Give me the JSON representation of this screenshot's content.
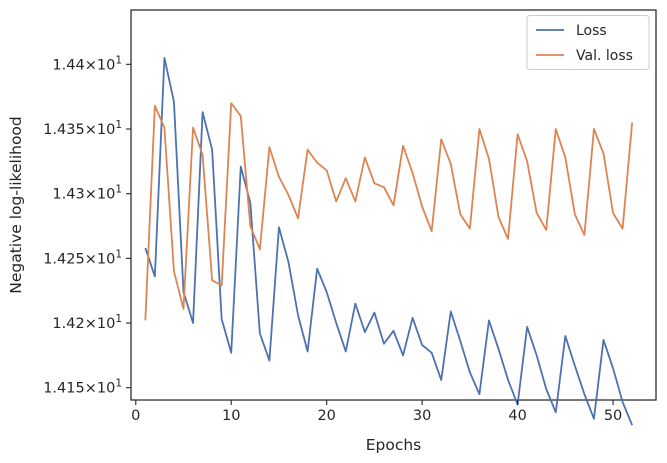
{
  "chart_data": {
    "type": "line",
    "xlabel": "Epochs",
    "ylabel": "Negative log-likelihood",
    "xlim": [
      -0.5,
      54.5
    ],
    "ylim": [
      14.1405,
      14.442
    ],
    "x_ticks": [
      0,
      10,
      20,
      30,
      40,
      50
    ],
    "x_tick_labels": [
      "0",
      "10",
      "20",
      "30",
      "40",
      "50"
    ],
    "y_ticks": [
      {
        "value": 14.15,
        "base": "1.415",
        "exp": "1"
      },
      {
        "value": 14.2,
        "base": "1.42",
        "exp": "1"
      },
      {
        "value": 14.25,
        "base": "1.425",
        "exp": "1"
      },
      {
        "value": 14.3,
        "base": "1.43",
        "exp": "1"
      },
      {
        "value": 14.35,
        "base": "1.435",
        "exp": "1"
      },
      {
        "value": 14.4,
        "base": "1.44",
        "exp": "1"
      }
    ],
    "grid": false,
    "legend_position": "top-right",
    "x": [
      1,
      2,
      3,
      4,
      5,
      6,
      7,
      8,
      9,
      10,
      11,
      12,
      13,
      14,
      15,
      16,
      17,
      18,
      19,
      20,
      21,
      22,
      23,
      24,
      25,
      26,
      27,
      28,
      29,
      30,
      31,
      32,
      33,
      34,
      35,
      36,
      37,
      38,
      39,
      40,
      41,
      42,
      43,
      44,
      45,
      46,
      47,
      48,
      49,
      50,
      51,
      52
    ],
    "series": [
      {
        "name": "Loss",
        "color": "#4c72b0",
        "values": [
          14.258,
          14.236,
          14.405,
          14.371,
          14.224,
          14.2,
          14.363,
          14.334,
          14.203,
          14.177,
          14.321,
          14.293,
          14.192,
          14.171,
          14.274,
          14.247,
          14.206,
          14.178,
          14.242,
          14.224,
          14.2,
          14.178,
          14.215,
          14.193,
          14.208,
          14.184,
          14.194,
          14.175,
          14.204,
          14.183,
          14.177,
          14.156,
          14.209,
          14.186,
          14.162,
          14.145,
          14.202,
          14.18,
          14.156,
          14.137,
          14.197,
          14.175,
          14.149,
          14.131,
          14.19,
          14.167,
          14.145,
          14.126,
          14.187,
          14.165,
          14.139,
          14.121
        ]
      },
      {
        "name": "Val. loss",
        "color": "#dd8452",
        "values": [
          14.202,
          14.368,
          14.351,
          14.24,
          14.211,
          14.351,
          14.33,
          14.233,
          14.229,
          14.37,
          14.36,
          14.275,
          14.257,
          14.336,
          14.313,
          14.299,
          14.281,
          14.334,
          14.324,
          14.318,
          14.294,
          14.312,
          14.294,
          14.328,
          14.308,
          14.305,
          14.291,
          14.337,
          14.316,
          14.29,
          14.271,
          14.342,
          14.323,
          14.284,
          14.273,
          14.35,
          14.327,
          14.282,
          14.265,
          14.346,
          14.325,
          14.285,
          14.272,
          14.35,
          14.328,
          14.284,
          14.268,
          14.35,
          14.331,
          14.285,
          14.273,
          14.355
        ]
      }
    ]
  }
}
